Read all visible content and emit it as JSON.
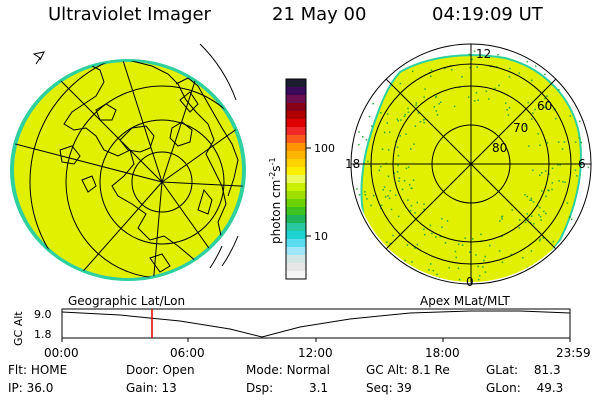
{
  "header": {
    "instrument": "Ultraviolet Imager",
    "date": "21 May 00",
    "time": "04:19:09 UT"
  },
  "colors": {
    "fill": "#e0f000",
    "edge": "#2fd0a0",
    "speckle": "#2faa3c",
    "cursor": "#dd0000",
    "scale": [
      "#1c1c30",
      "#3c0a5a",
      "#6a1050",
      "#8a0018",
      "#b00000",
      "#e00000",
      "#f02828",
      "#ff5a1e",
      "#ff9600",
      "#ffb400",
      "#ffd200",
      "#fff000",
      "#ebfa5a",
      "#c8f000",
      "#a0e000",
      "#6ed200",
      "#3cc31e",
      "#1eb45a",
      "#28c8a0",
      "#1ed2d2",
      "#5adcf0",
      "#a0e6fa",
      "#d2e6e6",
      "#e6e6e6",
      "#f5f5f5"
    ]
  },
  "left_globe": {
    "name": "geographic-globe"
  },
  "right_globe": {
    "name": "magnetic-dial",
    "labels": {
      "top": "12",
      "left": "18",
      "right": "6",
      "bottom": "0"
    },
    "lat_labels": [
      "60",
      "70",
      "80"
    ]
  },
  "colorbar": {
    "unit": "photon cm",
    "unit_sup1": "-2",
    "unit_mid": "s",
    "unit_sup2": "-1",
    "tick_labels": [
      "100",
      "10"
    ],
    "tick_values": [
      100,
      10
    ]
  },
  "timeline": {
    "left_title": "Geographic Lat/Lon",
    "right_title": "Apex MLat/MLT",
    "axis_label": "GC Alt",
    "ymax_label": "9.0",
    "ymin_label": "1.8",
    "time_labels": [
      "00:00",
      "06:00",
      "12:00",
      "18:00",
      "23:59"
    ],
    "cursor_time": "04:19"
  },
  "info": {
    "flt_label": "Flt:",
    "flt_value": "HOME",
    "ip_label": "IP:",
    "ip_value": "36.0",
    "door_label": "Door:",
    "door_value": "Open",
    "gain_label": "Gain:",
    "gain_value": "13",
    "mode_label": "Mode:",
    "mode_value": "Normal",
    "dsp_label": "Dsp:",
    "dsp_value": "3.1",
    "gcalt_label": "GC Alt:",
    "gcalt_value": "8.1 Re",
    "seq_label": "Seq:",
    "seq_value": "39",
    "glat_label": "GLat:",
    "glat_value": "81.3",
    "glon_label": "GLon:",
    "glon_value": "49.3"
  }
}
